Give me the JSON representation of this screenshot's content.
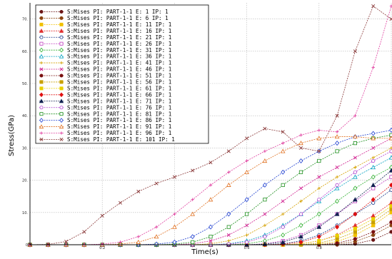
{
  "chart_data": {
    "type": "line",
    "xlabel": "Time(s)",
    "ylabel": "Stress(GPa)",
    "xlim": [
      0,
      1
    ],
    "ylim": [
      0,
      75
    ],
    "y_ticks": [
      "0",
      "10.",
      "20.",
      "30.",
      "40.",
      "50.",
      "60.",
      "70."
    ],
    "x_ticks": [
      "",
      "0.2",
      "",
      "0.6",
      "0.8",
      ""
    ],
    "grid": true,
    "legend_position": "top-left",
    "series": [
      {
        "name": "S:Mises PI: PART-1-1 E: 1 IP: 1",
        "color": "#6b1515",
        "marker": "circle-filled",
        "x": [
          0,
          0.05,
          0.1,
          0.15,
          0.2,
          0.25,
          0.3,
          0.35,
          0.4,
          0.45,
          0.5,
          0.55,
          0.6,
          0.65,
          0.7,
          0.75,
          0.8,
          0.85,
          0.9,
          0.95,
          1.0
        ],
        "values": [
          0,
          0,
          0,
          0,
          0,
          0,
          0,
          0,
          0,
          0,
          0,
          0,
          0,
          0,
          0,
          0,
          0,
          0,
          0.3,
          1.5,
          4
        ]
      },
      {
        "name": "S:Mises PI: PART-1-1 E: 6 IP: 1",
        "color": "#8b4513",
        "marker": "circle-filled",
        "x": [
          0,
          0.05,
          0.1,
          0.15,
          0.2,
          0.25,
          0.3,
          0.35,
          0.4,
          0.45,
          0.5,
          0.55,
          0.6,
          0.65,
          0.7,
          0.75,
          0.8,
          0.85,
          0.9,
          0.95,
          1.0
        ],
        "values": [
          0,
          0,
          0,
          0,
          0,
          0,
          0,
          0,
          0,
          0,
          0,
          0,
          0,
          0,
          0,
          0,
          0,
          0.2,
          1,
          3,
          6
        ]
      },
      {
        "name": "S:Mises PI: PART-1-1 E: 11 IP: 1",
        "color": "#f0c000",
        "marker": "square-filled",
        "x": [
          0,
          0.05,
          0.1,
          0.15,
          0.2,
          0.25,
          0.3,
          0.35,
          0.4,
          0.45,
          0.5,
          0.55,
          0.6,
          0.65,
          0.7,
          0.75,
          0.8,
          0.85,
          0.9,
          0.95,
          1.0
        ],
        "values": [
          0,
          0,
          0,
          0,
          0,
          0,
          0,
          0,
          0,
          0,
          0,
          0,
          0,
          0,
          0,
          0,
          0.2,
          1,
          3,
          6,
          10
        ]
      },
      {
        "name": "S:Mises PI: PART-1-1 E: 16 IP: 1",
        "color": "#e03030",
        "marker": "triangle-filled",
        "x": [
          0,
          0.05,
          0.1,
          0.15,
          0.2,
          0.25,
          0.3,
          0.35,
          0.4,
          0.45,
          0.5,
          0.55,
          0.6,
          0.65,
          0.7,
          0.75,
          0.8,
          0.85,
          0.9,
          0.95,
          1.0
        ],
        "values": [
          0,
          0,
          0,
          0,
          0,
          0,
          0,
          0,
          0,
          0,
          0,
          0,
          0,
          0,
          0,
          0.3,
          1.2,
          3,
          6,
          9,
          13
        ]
      },
      {
        "name": "S:Mises PI: PART-1-1 E: 21 IP: 1",
        "color": "#1a3a8a",
        "marker": "circle-open",
        "x": [
          0,
          0.05,
          0.1,
          0.15,
          0.2,
          0.25,
          0.3,
          0.35,
          0.4,
          0.45,
          0.5,
          0.55,
          0.6,
          0.65,
          0.7,
          0.75,
          0.8,
          0.85,
          0.9,
          0.95,
          1.0
        ],
        "values": [
          0,
          0,
          0,
          0,
          0,
          0,
          0,
          0,
          0,
          0,
          0,
          0,
          0,
          0,
          0.3,
          1.2,
          3,
          6,
          9.5,
          13,
          17
        ]
      },
      {
        "name": "S:Mises PI: PART-1-1 E: 26 IP: 1",
        "color": "#c040c0",
        "marker": "square-open",
        "x": [
          0,
          0.05,
          0.1,
          0.15,
          0.2,
          0.25,
          0.3,
          0.35,
          0.4,
          0.45,
          0.5,
          0.55,
          0.6,
          0.65,
          0.7,
          0.75,
          0.8,
          0.85,
          0.9,
          0.95,
          1.0
        ],
        "values": [
          0,
          0,
          0,
          0,
          0,
          0,
          0,
          0,
          0,
          0,
          0,
          0,
          0,
          0.3,
          1.2,
          3,
          6,
          9.5,
          13.5,
          17.5,
          21
        ]
      },
      {
        "name": "S:Mises PI: PART-1-1 E: 31 IP: 1",
        "color": "#30b030",
        "marker": "diamond-open",
        "x": [
          0,
          0.05,
          0.1,
          0.15,
          0.2,
          0.25,
          0.3,
          0.35,
          0.4,
          0.45,
          0.5,
          0.55,
          0.6,
          0.65,
          0.7,
          0.75,
          0.8,
          0.85,
          0.9,
          0.95,
          1.0
        ],
        "values": [
          0,
          0,
          0,
          0,
          0,
          0,
          0,
          0,
          0,
          0,
          0,
          0,
          0.3,
          1.2,
          3,
          6,
          9.5,
          13.5,
          17.5,
          21,
          24
        ]
      },
      {
        "name": "S:Mises PI: PART-1-1 E: 36 IP: 1",
        "color": "#00a0c0",
        "marker": "triangle-open",
        "x": [
          0,
          0.05,
          0.1,
          0.15,
          0.2,
          0.25,
          0.3,
          0.35,
          0.4,
          0.45,
          0.5,
          0.55,
          0.6,
          0.65,
          0.7,
          0.75,
          0.8,
          0.85,
          0.9,
          0.95,
          1.0
        ],
        "values": [
          0,
          0,
          0,
          0,
          0,
          0,
          0,
          0,
          0,
          0,
          0,
          0.3,
          1.2,
          3,
          6,
          9.5,
          13.5,
          17.5,
          21,
          24,
          27
        ]
      },
      {
        "name": "S:Mises PI: PART-1-1 E: 41 IP: 1",
        "color": "#d4a000",
        "marker": "plus",
        "x": [
          0,
          0.05,
          0.1,
          0.15,
          0.2,
          0.25,
          0.3,
          0.35,
          0.4,
          0.45,
          0.5,
          0.55,
          0.6,
          0.65,
          0.7,
          0.75,
          0.8,
          0.85,
          0.9,
          0.95,
          1.0
        ],
        "values": [
          0,
          0,
          0,
          0,
          0,
          0,
          0,
          0,
          0,
          0,
          0.3,
          1.2,
          3,
          6,
          9.5,
          13.5,
          17.5,
          21,
          24,
          27,
          30
        ]
      },
      {
        "name": "S:Mises PI: PART-1-1 E: 46 IP: 1",
        "color": "#d02090",
        "marker": "cross",
        "x": [
          0,
          0.05,
          0.1,
          0.15,
          0.2,
          0.25,
          0.3,
          0.35,
          0.4,
          0.45,
          0.5,
          0.55,
          0.6,
          0.65,
          0.7,
          0.75,
          0.8,
          0.85,
          0.9,
          0.95,
          1.0
        ],
        "values": [
          0,
          0,
          0,
          0,
          0,
          0,
          0,
          0,
          0,
          0.3,
          1.2,
          3,
          6,
          9.5,
          13.5,
          17.5,
          21,
          24,
          27,
          30,
          33
        ]
      },
      {
        "name": "S:Mises PI: PART-1-1 E: 51 IP: 1",
        "color": "#7a1010",
        "marker": "circle-filled",
        "x": [
          0,
          0.05,
          0.1,
          0.15,
          0.2,
          0.25,
          0.3,
          0.35,
          0.4,
          0.45,
          0.5,
          0.55,
          0.6,
          0.65,
          0.7,
          0.75,
          0.8,
          0.85,
          0.9,
          0.95,
          1.0
        ],
        "values": [
          0,
          0,
          0,
          0,
          0,
          0,
          0,
          0,
          0,
          0,
          0,
          0,
          0,
          0,
          0,
          0,
          0,
          0.5,
          1.8,
          4,
          7
        ]
      },
      {
        "name": "S:Mises PI: PART-1-1 E: 56 IP: 1",
        "color": "#c8a000",
        "marker": "square-filled",
        "x": [
          0,
          0.05,
          0.1,
          0.15,
          0.2,
          0.25,
          0.3,
          0.35,
          0.4,
          0.45,
          0.5,
          0.55,
          0.6,
          0.65,
          0.7,
          0.75,
          0.8,
          0.85,
          0.9,
          0.95,
          1.0
        ],
        "values": [
          0,
          0,
          0,
          0,
          0,
          0,
          0,
          0,
          0,
          0,
          0,
          0,
          0,
          0,
          0,
          0,
          0.5,
          1.8,
          4,
          7,
          11
        ]
      },
      {
        "name": "S:Mises PI: PART-1-1 E: 61 IP: 1",
        "color": "#e8d000",
        "marker": "square-filled",
        "x": [
          0,
          0.05,
          0.1,
          0.15,
          0.2,
          0.25,
          0.3,
          0.35,
          0.4,
          0.45,
          0.5,
          0.55,
          0.6,
          0.65,
          0.7,
          0.75,
          0.8,
          0.85,
          0.9,
          0.95,
          1.0
        ],
        "values": [
          0,
          0,
          0,
          0,
          0,
          0,
          0,
          0,
          0,
          0,
          0,
          0,
          0,
          0,
          0,
          0.3,
          1.2,
          2.8,
          5,
          8,
          12
        ]
      },
      {
        "name": "S:Mises PI: PART-1-1 E: 66 IP: 1",
        "color": "#e01010",
        "marker": "diamond-filled",
        "x": [
          0,
          0.05,
          0.1,
          0.15,
          0.2,
          0.25,
          0.3,
          0.35,
          0.4,
          0.45,
          0.5,
          0.55,
          0.6,
          0.65,
          0.7,
          0.75,
          0.8,
          0.85,
          0.9,
          0.95,
          1.0
        ],
        "values": [
          0,
          0,
          0,
          0,
          0,
          0,
          0,
          0,
          0,
          0,
          0,
          0,
          0,
          0,
          0.2,
          0.8,
          2.5,
          5.5,
          9.5,
          14,
          18.5
        ]
      },
      {
        "name": "S:Mises PI: PART-1-1 E: 71 IP: 1",
        "color": "#102050",
        "marker": "triangle-filled",
        "x": [
          0,
          0.05,
          0.1,
          0.15,
          0.2,
          0.25,
          0.3,
          0.35,
          0.4,
          0.45,
          0.5,
          0.55,
          0.6,
          0.65,
          0.7,
          0.75,
          0.8,
          0.85,
          0.9,
          0.95,
          1.0
        ],
        "values": [
          0,
          0,
          0,
          0,
          0,
          0,
          0,
          0,
          0,
          0,
          0,
          0,
          0,
          0.2,
          0.8,
          2.5,
          5.5,
          9.5,
          14,
          18.5,
          23
        ]
      },
      {
        "name": "S:Mises PI: PART-1-1 E: 76 IP: 1",
        "color": "#b040d0",
        "marker": "circle-open",
        "x": [
          0,
          0.05,
          0.1,
          0.15,
          0.2,
          0.25,
          0.3,
          0.35,
          0.4,
          0.45,
          0.5,
          0.55,
          0.6,
          0.65,
          0.7,
          0.75,
          0.8,
          0.85,
          0.9,
          0.95,
          1.0
        ],
        "values": [
          0,
          0,
          0,
          0,
          0,
          0,
          0,
          0,
          0,
          0,
          0,
          0.2,
          0.8,
          2.5,
          5.5,
          9.5,
          14,
          18.5,
          22.5,
          26,
          29
        ]
      },
      {
        "name": "S:Mises PI: PART-1-1 E: 81 IP: 1",
        "color": "#209020",
        "marker": "square-open",
        "x": [
          0,
          0.05,
          0.1,
          0.15,
          0.2,
          0.25,
          0.3,
          0.35,
          0.4,
          0.45,
          0.5,
          0.55,
          0.6,
          0.65,
          0.7,
          0.75,
          0.8,
          0.85,
          0.9,
          0.95,
          1.0
        ],
        "values": [
          0,
          0,
          0,
          0,
          0,
          0,
          0,
          0,
          0.2,
          0.8,
          2.5,
          5.5,
          9.5,
          14,
          18.5,
          22.5,
          26,
          29,
          31.5,
          33,
          34
        ]
      },
      {
        "name": "S:Mises PI: PART-1-1 E: 86 IP: 1",
        "color": "#2040d0",
        "marker": "diamond-open",
        "x": [
          0,
          0.05,
          0.1,
          0.15,
          0.2,
          0.25,
          0.3,
          0.35,
          0.4,
          0.45,
          0.5,
          0.55,
          0.6,
          0.65,
          0.7,
          0.75,
          0.8,
          0.85,
          0.9,
          0.95,
          1.0
        ],
        "values": [
          0,
          0,
          0,
          0,
          0,
          0,
          0,
          0.2,
          0.8,
          2.5,
          5.5,
          9.5,
          14,
          18.5,
          22.5,
          26,
          29,
          31.5,
          33.5,
          34.5,
          35.5
        ]
      },
      {
        "name": "S:Mises PI: PART-1-1 E: 91 IP: 1",
        "color": "#e07020",
        "marker": "triangle-open",
        "x": [
          0,
          0.05,
          0.1,
          0.15,
          0.2,
          0.25,
          0.3,
          0.35,
          0.4,
          0.45,
          0.5,
          0.55,
          0.6,
          0.65,
          0.7,
          0.75,
          0.8,
          0.85,
          0.9,
          0.95,
          1.0
        ],
        "values": [
          0,
          0,
          0,
          0,
          0,
          0.2,
          0.8,
          2.5,
          5.5,
          9.5,
          14,
          18.5,
          22.5,
          26,
          29,
          31.5,
          33,
          33.5,
          33.5,
          33,
          33
        ]
      },
      {
        "name": "S:Mises PI: PART-1-1 E: 96 IP: 1",
        "color": "#e040a0",
        "marker": "plus",
        "x": [
          0,
          0.05,
          0.1,
          0.15,
          0.2,
          0.25,
          0.3,
          0.35,
          0.4,
          0.45,
          0.5,
          0.55,
          0.6,
          0.65,
          0.7,
          0.75,
          0.8,
          0.85,
          0.9,
          0.95,
          1.0
        ],
        "values": [
          0,
          0,
          0,
          0,
          0.2,
          0.8,
          2.5,
          5.5,
          9.5,
          14,
          18.5,
          22.5,
          26,
          29,
          31.5,
          34,
          35.5,
          35,
          40,
          55,
          74
        ]
      },
      {
        "name": "S:Mises PI: PART-1-1 E: 101 IP: 1",
        "color": "#8b3a3a",
        "marker": "cross",
        "x": [
          0,
          0.05,
          0.1,
          0.15,
          0.2,
          0.25,
          0.3,
          0.35,
          0.4,
          0.45,
          0.5,
          0.55,
          0.6,
          0.65,
          0.7,
          0.75,
          0.8,
          0.85,
          0.9,
          0.95,
          1.0
        ],
        "values": [
          0,
          0.1,
          1,
          4,
          9,
          13,
          16.5,
          19,
          21,
          23,
          25.5,
          29,
          33,
          36,
          35,
          30,
          29,
          40,
          60,
          74,
          70
        ]
      }
    ]
  }
}
